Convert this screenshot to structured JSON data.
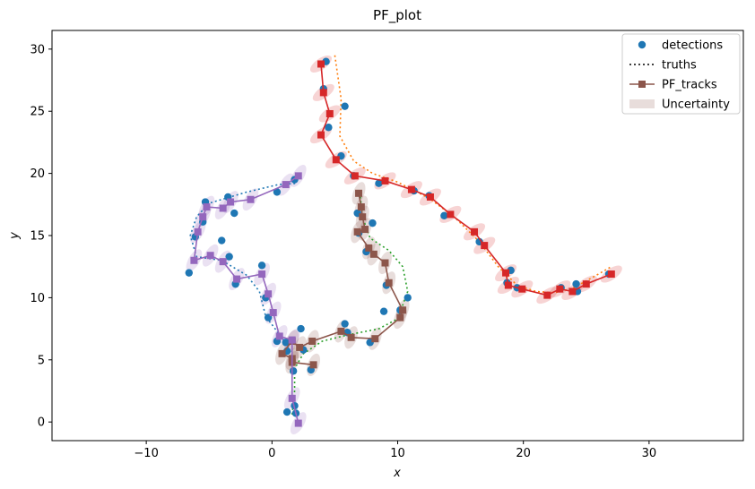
{
  "chart_data": {
    "type": "scatter",
    "title": "PF_plot",
    "xlabel": "x",
    "ylabel": "y",
    "xlim": [
      -17.5,
      37.5
    ],
    "ylim": [
      -1.5,
      31.5
    ],
    "xticks": [
      -10,
      0,
      10,
      20,
      30
    ],
    "yticks": [
      0,
      5,
      10,
      15,
      20,
      25,
      30
    ],
    "grid": false,
    "legend_position": "top-right",
    "legend": [
      {
        "label": "detections",
        "kind": "marker-circle",
        "color": "#1f77b4"
      },
      {
        "label": "truths",
        "kind": "dotted-line",
        "color": "#000000"
      },
      {
        "label": "PF_tracks",
        "kind": "line-square",
        "color": "#8c564b"
      },
      {
        "label": "Uncertainty",
        "kind": "patch",
        "color": "#8c564b"
      }
    ],
    "colors": {
      "detections": "#1f77b4",
      "track_red": "#d62728",
      "track_brown": "#8c564b",
      "track_purple": "#9467bd",
      "truth_orange": "#ff7f0e",
      "truth_green": "#2ca02c",
      "truth_blue": "#1f77b4"
    },
    "detections": [
      [
        4.3,
        29.0
      ],
      [
        4.1,
        26.8
      ],
      [
        5.8,
        25.4
      ],
      [
        4.5,
        23.7
      ],
      [
        5.5,
        21.4
      ],
      [
        6.5,
        19.8
      ],
      [
        8.5,
        19.2
      ],
      [
        11.3,
        18.6
      ],
      [
        12.5,
        18.2
      ],
      [
        13.7,
        16.6
      ],
      [
        16.5,
        14.5
      ],
      [
        19.0,
        12.2
      ],
      [
        18.7,
        11.2
      ],
      [
        19.5,
        10.8
      ],
      [
        23.0,
        10.8
      ],
      [
        24.3,
        10.5
      ],
      [
        24.2,
        11.1
      ],
      [
        26.8,
        11.9
      ],
      [
        6.8,
        16.8
      ],
      [
        6.9,
        15.2
      ],
      [
        8.0,
        16.0
      ],
      [
        7.5,
        13.7
      ],
      [
        9.1,
        11.0
      ],
      [
        10.8,
        10.0
      ],
      [
        10.2,
        9.0
      ],
      [
        8.9,
        8.9
      ],
      [
        7.8,
        6.4
      ],
      [
        6.0,
        7.2
      ],
      [
        5.8,
        7.9
      ],
      [
        3.1,
        4.2
      ],
      [
        2.5,
        5.8
      ],
      [
        1.7,
        4.1
      ],
      [
        2.3,
        7.5
      ],
      [
        -0.8,
        12.6
      ],
      [
        -0.5,
        10.0
      ],
      [
        -0.3,
        8.4
      ],
      [
        0.4,
        6.5
      ],
      [
        1.1,
        6.4
      ],
      [
        1.2,
        5.7
      ],
      [
        -3.0,
        16.8
      ],
      [
        -3.5,
        18.1
      ],
      [
        -4.0,
        14.6
      ],
      [
        -3.4,
        13.3
      ],
      [
        -2.9,
        11.1
      ],
      [
        -5.3,
        17.7
      ],
      [
        -5.5,
        16.1
      ],
      [
        -6.1,
        14.9
      ],
      [
        -6.6,
        12.0
      ],
      [
        0.4,
        18.5
      ],
      [
        1.8,
        19.5
      ],
      [
        1.9,
        0.7
      ],
      [
        1.2,
        0.8
      ],
      [
        1.8,
        1.3
      ]
    ],
    "truths": [
      {
        "color": "#ff7f0e",
        "points": [
          [
            5.0,
            29.5
          ],
          [
            5.5,
            26.0
          ],
          [
            5.4,
            23.0
          ],
          [
            6.5,
            21.0
          ],
          [
            8.0,
            20.0
          ],
          [
            10.0,
            19.3
          ],
          [
            12.5,
            18.0
          ],
          [
            14.5,
            16.5
          ],
          [
            16.5,
            14.5
          ],
          [
            18.0,
            12.5
          ],
          [
            19.5,
            11.0
          ],
          [
            21.0,
            10.5
          ],
          [
            22.5,
            10.4
          ],
          [
            24.0,
            10.8
          ],
          [
            25.8,
            11.8
          ],
          [
            27.0,
            12.5
          ]
        ]
      },
      {
        "color": "#2ca02c",
        "points": [
          [
            1.6,
            0.6
          ],
          [
            1.8,
            2.5
          ],
          [
            1.8,
            4.3
          ],
          [
            2.5,
            5.5
          ],
          [
            4.0,
            6.5
          ],
          [
            6.0,
            7.0
          ],
          [
            8.5,
            7.5
          ],
          [
            10.0,
            8.3
          ],
          [
            10.8,
            10.5
          ],
          [
            10.4,
            12.5
          ],
          [
            9.3,
            13.8
          ],
          [
            7.8,
            14.8
          ],
          [
            7.2,
            16.5
          ],
          [
            7.0,
            18.5
          ]
        ]
      },
      {
        "color": "#1f77b4",
        "points": [
          [
            1.8,
            5.0
          ],
          [
            1.0,
            6.5
          ],
          [
            -0.5,
            8.5
          ],
          [
            -1.0,
            10.5
          ],
          [
            -2.0,
            11.8
          ],
          [
            -4.0,
            13.0
          ],
          [
            -6.0,
            13.3
          ],
          [
            -6.5,
            15.0
          ],
          [
            -6.0,
            16.5
          ],
          [
            -5.0,
            17.6
          ],
          [
            -2.0,
            18.5
          ],
          [
            0.5,
            19.1
          ],
          [
            2.0,
            19.2
          ]
        ]
      }
    ],
    "tracks": [
      {
        "color": "#d62728",
        "points": [
          [
            3.9,
            28.8
          ],
          [
            4.1,
            26.5
          ],
          [
            4.6,
            24.8
          ],
          [
            3.9,
            23.1
          ],
          [
            5.1,
            21.1
          ],
          [
            6.6,
            19.8
          ],
          [
            9.0,
            19.4
          ],
          [
            11.1,
            18.7
          ],
          [
            12.6,
            18.1
          ],
          [
            14.2,
            16.7
          ],
          [
            16.1,
            15.3
          ],
          [
            16.9,
            14.2
          ],
          [
            18.6,
            12.0
          ],
          [
            18.8,
            11.0
          ],
          [
            19.9,
            10.7
          ],
          [
            21.9,
            10.2
          ],
          [
            22.9,
            10.7
          ],
          [
            23.9,
            10.5
          ],
          [
            25.0,
            11.1
          ],
          [
            27.0,
            11.9
          ]
        ],
        "ellipse": {
          "rx": 1.0,
          "ry": 0.45,
          "angle": -35
        }
      },
      {
        "color": "#8c564b",
        "points": [
          [
            6.9,
            18.4
          ],
          [
            7.1,
            17.3
          ],
          [
            7.2,
            16.5
          ],
          [
            7.4,
            15.5
          ],
          [
            6.8,
            15.3
          ],
          [
            7.7,
            14.0
          ],
          [
            8.1,
            13.5
          ],
          [
            9.0,
            12.8
          ],
          [
            9.3,
            11.2
          ],
          [
            10.4,
            9.0
          ],
          [
            10.2,
            8.4
          ],
          [
            8.2,
            6.7
          ],
          [
            6.3,
            6.8
          ],
          [
            5.5,
            7.3
          ],
          [
            3.2,
            6.5
          ],
          [
            2.2,
            6.0
          ],
          [
            1.6,
            6.5
          ],
          [
            0.8,
            5.5
          ],
          [
            1.6,
            5.1
          ],
          [
            1.6,
            4.8
          ],
          [
            3.3,
            4.6
          ]
        ],
        "ellipse": {
          "rx": 0.45,
          "ry": 0.95,
          "angle": 20
        }
      },
      {
        "color": "#9467bd",
        "points": [
          [
            2.1,
            19.8
          ],
          [
            1.1,
            19.1
          ],
          [
            -1.7,
            17.9
          ],
          [
            -3.3,
            17.7
          ],
          [
            -3.9,
            17.2
          ],
          [
            -5.2,
            17.3
          ],
          [
            -5.5,
            16.5
          ],
          [
            -5.9,
            15.3
          ],
          [
            -6.2,
            13.0
          ],
          [
            -4.9,
            13.4
          ],
          [
            -3.9,
            12.9
          ],
          [
            -2.8,
            11.5
          ],
          [
            -0.8,
            11.9
          ],
          [
            -0.3,
            10.3
          ],
          [
            0.1,
            8.8
          ],
          [
            0.6,
            6.9
          ],
          [
            1.6,
            6.6
          ],
          [
            1.6,
            1.9
          ],
          [
            2.1,
            -0.1
          ]
        ],
        "ellipse": {
          "rx": 0.45,
          "ry": 1.0,
          "angle": 30
        }
      }
    ]
  }
}
